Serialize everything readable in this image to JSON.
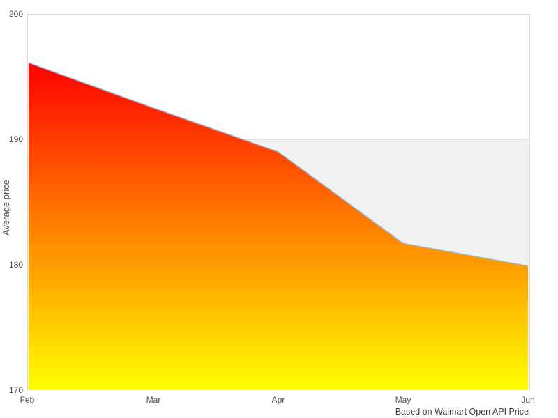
{
  "chart_data": {
    "type": "area",
    "categories": [
      "Feb",
      "Mar",
      "Apr",
      "May",
      "Jun"
    ],
    "values": [
      196.1,
      192.5,
      189.0,
      181.7,
      179.9
    ],
    "series_name": "Average price",
    "title": "",
    "xlabel": "",
    "ylabel": "Average price",
    "caption": "Based on Walmart Open API Price",
    "ylim": [
      170,
      200
    ],
    "yticks": [
      200,
      190,
      180,
      170
    ],
    "grid": "horizontal-sparse",
    "legend": "none",
    "plot_band": {
      "from": 170,
      "to": 190,
      "color": "#f2f2f2"
    },
    "colors": {
      "line": "#8fb9de",
      "gradient_top": "#ff0000",
      "gradient_bottom": "#ffff00",
      "band": "#f2f2f2",
      "gridline": "#e2e2e2",
      "border": "#d9d9d9",
      "label": "#4d4d4d",
      "caption": "#3d3d3d",
      "background": "#ffffff"
    }
  }
}
